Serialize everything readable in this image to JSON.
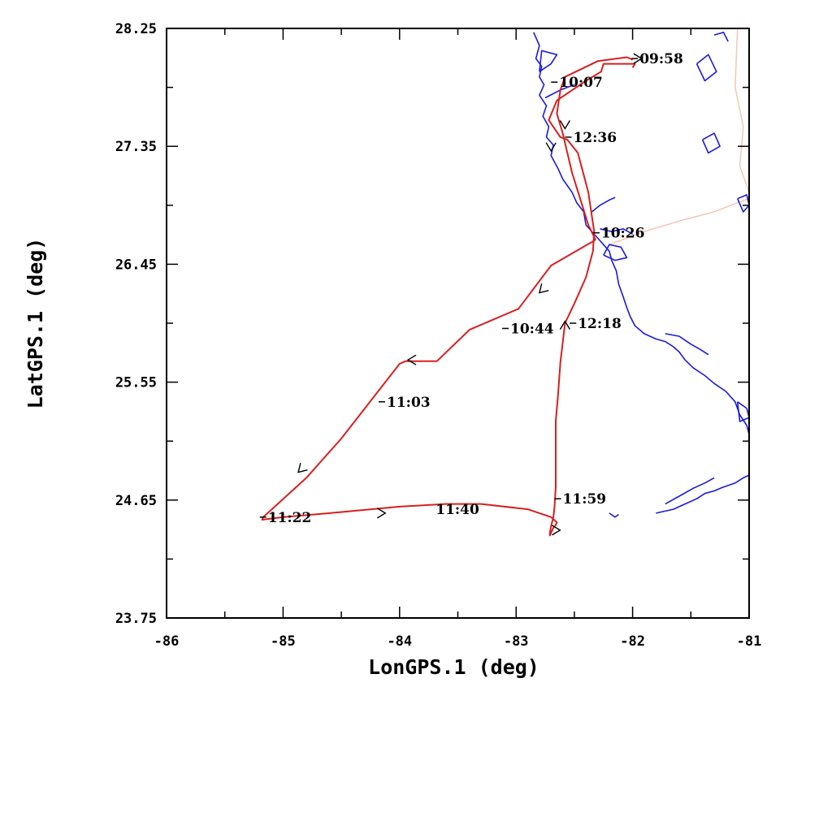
{
  "chart_data": {
    "type": "line",
    "title": "",
    "xlabel": "LonGPS.1 (deg)",
    "ylabel": "LatGPS.1 (deg)",
    "xlim": [
      -86,
      -81
    ],
    "ylim": [
      23.75,
      28.25
    ],
    "x_ticks": [
      -86,
      -85,
      -84,
      -83,
      -82,
      -81
    ],
    "x_tick_labels": [
      "-86",
      "-85",
      "-84",
      "-83",
      "-82",
      "-81"
    ],
    "y_ticks": [
      23.75,
      24.65,
      25.55,
      26.45,
      27.35,
      28.25
    ],
    "y_tick_labels": [
      "23.75",
      "24.65",
      "25.55",
      "26.45",
      "27.35",
      "28.25"
    ],
    "colors": {
      "track": "#d62020",
      "coastline": "#1a1adf",
      "boundary": "#f5c6b0",
      "axes": "#000000"
    },
    "series": [
      {
        "x": [
          -82.0,
          -81.98,
          -82.25,
          -82.27,
          -82.4,
          -82.65,
          -82.72,
          -82.62,
          -82.56,
          -82.47,
          -82.38,
          -82.33,
          -82.34,
          -82.4,
          -82.5,
          -82.58,
          -82.62,
          -82.64,
          -82.66,
          -82.66,
          -82.66,
          -82.66,
          -82.67,
          -82.68,
          -82.7,
          -82.71,
          -82.71,
          -82.7,
          -82.69,
          -82.68,
          -82.66,
          -82.65,
          -82.7,
          -82.9,
          -83.3,
          -83.6,
          -84.0,
          -84.6,
          -85.0,
          -85.18,
          -85.17,
          -84.8,
          -84.5,
          -84.0,
          -83.95,
          -83.68,
          -83.4,
          -82.98,
          -82.7,
          -82.33,
          -82.32,
          -82.38,
          -82.45,
          -82.52,
          -82.56,
          -82.6,
          -82.65,
          -82.62,
          -82.58,
          -82.3,
          -82.05,
          -82.02,
          -82.0
        ],
        "y": [
          27.95,
          27.98,
          27.98,
          27.92,
          27.85,
          27.7,
          27.55,
          27.42,
          27.4,
          27.3,
          27.0,
          26.7,
          26.55,
          26.35,
          26.15,
          26.0,
          25.7,
          25.45,
          25.25,
          25.05,
          24.9,
          24.75,
          24.6,
          24.52,
          24.45,
          24.4,
          24.38,
          24.4,
          24.42,
          24.44,
          24.46,
          24.48,
          24.52,
          24.58,
          24.62,
          24.62,
          24.6,
          24.55,
          24.52,
          24.5,
          24.52,
          24.82,
          25.12,
          25.69,
          25.71,
          25.71,
          25.95,
          26.11,
          26.44,
          26.63,
          26.64,
          26.75,
          26.95,
          27.15,
          27.3,
          27.45,
          27.6,
          27.78,
          27.88,
          28.0,
          28.03,
          28.02,
          28.01
        ]
      }
    ],
    "annotations": [
      {
        "text": "09:58",
        "x": -81.94,
        "y": 28.02,
        "tick": true
      },
      {
        "text": "10:07",
        "x": -82.63,
        "y": 27.84,
        "tick": true
      },
      {
        "text": "10:26",
        "x": -82.27,
        "y": 26.69,
        "tick": true
      },
      {
        "text": "10:44",
        "x": -83.05,
        "y": 25.96,
        "tick": true
      },
      {
        "text": "11:03",
        "x": -84.11,
        "y": 25.4,
        "tick": true
      },
      {
        "text": "11:22",
        "x": -85.13,
        "y": 24.52,
        "tick": true
      },
      {
        "text": "11:40",
        "x": -83.69,
        "y": 24.58,
        "tick": false
      },
      {
        "text": "11:59",
        "x": -82.6,
        "y": 24.66,
        "tick": true
      },
      {
        "text": "12:18",
        "x": -82.47,
        "y": 26.0,
        "tick": true
      },
      {
        "text": "12:36",
        "x": -82.51,
        "y": 27.42,
        "tick": true
      }
    ],
    "direction_markers": [
      {
        "x": -81.95,
        "y": 28.02,
        "dir": "right"
      },
      {
        "x": -82.7,
        "y": 27.34,
        "dir": "down"
      },
      {
        "x": -82.58,
        "y": 27.51,
        "dir": "down"
      },
      {
        "x": -82.58,
        "y": 25.99,
        "dir": "up"
      },
      {
        "x": -82.78,
        "y": 26.25,
        "dir": "down-left"
      },
      {
        "x": -83.9,
        "y": 25.72,
        "dir": "left"
      },
      {
        "x": -84.85,
        "y": 24.88,
        "dir": "down-left"
      },
      {
        "x": -84.15,
        "y": 24.55,
        "dir": "right"
      },
      {
        "x": -82.65,
        "y": 24.42,
        "dir": "right"
      }
    ],
    "coastline": [
      {
        "x": [
          -82.85,
          -82.8,
          -82.83,
          -82.78,
          -82.8,
          -82.76,
          -82.8,
          -82.74,
          -82.77,
          -82.72,
          -82.74,
          -82.68,
          -82.7,
          -82.64,
          -82.6
        ],
        "y": [
          28.22,
          28.12,
          28.02,
          27.96,
          27.88,
          27.82,
          27.74,
          27.66,
          27.58,
          27.5,
          27.42,
          27.36,
          27.28,
          27.18,
          27.1
        ]
      },
      {
        "x": [
          -82.6,
          -82.52,
          -82.48,
          -82.42,
          -82.4,
          -82.35,
          -82.3,
          -82.25,
          -82.2,
          -82.18,
          -82.14,
          -82.12,
          -82.08,
          -82.05,
          -82.02,
          -81.98,
          -81.9,
          -81.8,
          -81.72,
          -81.65,
          -81.6,
          -81.55,
          -81.48,
          -81.38,
          -81.3,
          -81.2,
          -81.12,
          -81.08,
          -81.02,
          -81.0
        ],
        "y": [
          27.1,
          27.0,
          26.92,
          26.85,
          26.75,
          26.7,
          26.65,
          26.6,
          26.55,
          26.48,
          26.4,
          26.3,
          26.2,
          26.12,
          26.05,
          25.98,
          25.92,
          25.88,
          25.86,
          25.82,
          25.78,
          25.72,
          25.66,
          25.6,
          25.54,
          25.48,
          25.4,
          25.3,
          25.22,
          25.15
        ]
      },
      {
        "x": [
          -82.35,
          -82.28,
          -82.2,
          -82.15
        ],
        "y": [
          26.85,
          26.9,
          26.94,
          26.96
        ]
      },
      {
        "x": [
          -82.28,
          -82.18,
          -82.08,
          -82.0
        ],
        "y": [
          26.72,
          26.7,
          26.72,
          26.68
        ]
      },
      {
        "x": [
          -82.25,
          -82.15,
          -82.05,
          -82.1,
          -82.2,
          -82.25
        ],
        "y": [
          26.52,
          26.48,
          26.5,
          26.58,
          26.6,
          26.52
        ]
      },
      {
        "x": [
          -82.75,
          -82.62,
          -82.5
        ],
        "y": [
          27.72,
          27.78,
          27.82
        ]
      },
      {
        "x": [
          -82.8,
          -82.7,
          -82.65,
          -82.78,
          -82.8
        ],
        "y": [
          27.92,
          27.98,
          28.05,
          28.08,
          27.92
        ]
      },
      {
        "x": [
          -81.72,
          -81.6,
          -81.5,
          -81.42,
          -81.35
        ],
        "y": [
          25.92,
          25.9,
          25.84,
          25.8,
          25.76
        ]
      },
      {
        "x": [
          -81.1,
          -81.02,
          -81.0,
          -81.08,
          -81.1
        ],
        "y": [
          25.4,
          25.35,
          25.28,
          25.25,
          25.4
        ]
      },
      {
        "x": [
          -81.4,
          -81.3,
          -81.25,
          -81.35,
          -81.4
        ],
        "y": [
          27.4,
          27.45,
          27.35,
          27.3,
          27.4
        ]
      },
      {
        "x": [
          -81.1,
          -81.02,
          -81.0,
          -81.05,
          -81.1
        ],
        "y": [
          26.95,
          26.98,
          26.9,
          26.85,
          26.95
        ]
      },
      {
        "x": [
          -81.45,
          -81.35,
          -81.28,
          -81.38,
          -81.45
        ],
        "y": [
          27.98,
          28.05,
          27.92,
          27.85,
          27.98
        ]
      },
      {
        "x": [
          -81.3,
          -81.22,
          -81.18
        ],
        "y": [
          28.2,
          28.22,
          28.15
        ]
      },
      {
        "x": [
          -81.8,
          -81.65,
          -81.55,
          -81.45,
          -81.38,
          -81.3,
          -81.22,
          -81.12,
          -81.05,
          -81.0
        ],
        "y": [
          24.55,
          24.58,
          24.62,
          24.66,
          24.7,
          24.72,
          24.75,
          24.78,
          24.82,
          24.84
        ]
      },
      {
        "x": [
          -81.72,
          -81.6,
          -81.48,
          -81.38,
          -81.3
        ],
        "y": [
          24.62,
          24.68,
          24.74,
          24.78,
          24.82
        ]
      },
      {
        "x": [
          -82.2,
          -82.15,
          -82.12
        ],
        "y": [
          24.55,
          24.52,
          24.54
        ]
      }
    ],
    "boundary": [
      {
        "x": [
          -81.1,
          -81.12,
          -81.05,
          -81.08,
          -81.0
        ],
        "y": [
          28.25,
          27.8,
          27.5,
          27.2,
          27.0
        ]
      },
      {
        "x": [
          -82.2,
          -81.9,
          -81.6,
          -81.3,
          -81.1,
          -81.0
        ],
        "y": [
          26.6,
          26.7,
          26.78,
          26.85,
          26.92,
          26.95
        ]
      }
    ]
  }
}
